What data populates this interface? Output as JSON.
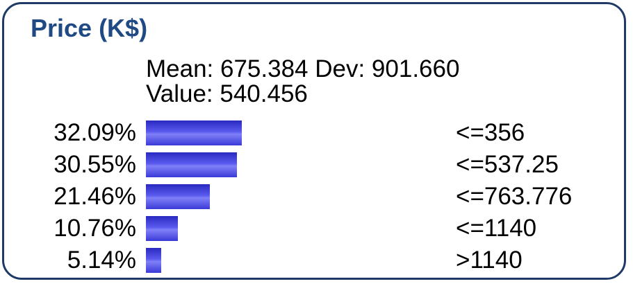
{
  "node": {
    "title": "Price (K$)",
    "mean_line": "Mean: 675.384 Dev: 901.660",
    "value_line": "Value: 540.456"
  },
  "colors": {
    "border": "#1f3a66",
    "title": "#1f4a84",
    "bar": "#3a3ad8"
  },
  "chart_data": {
    "type": "bar",
    "orientation": "horizontal",
    "title": "Price (K$)",
    "categories": [
      "<=356",
      "<=537.25",
      "<=763.776",
      "<=1140",
      ">1140"
    ],
    "values": [
      32.09,
      30.55,
      21.46,
      10.76,
      5.14
    ],
    "value_labels": [
      "32.09%",
      "30.55%",
      "21.46%",
      "10.76%",
      "5.14%"
    ],
    "xlim": [
      0,
      100
    ]
  }
}
